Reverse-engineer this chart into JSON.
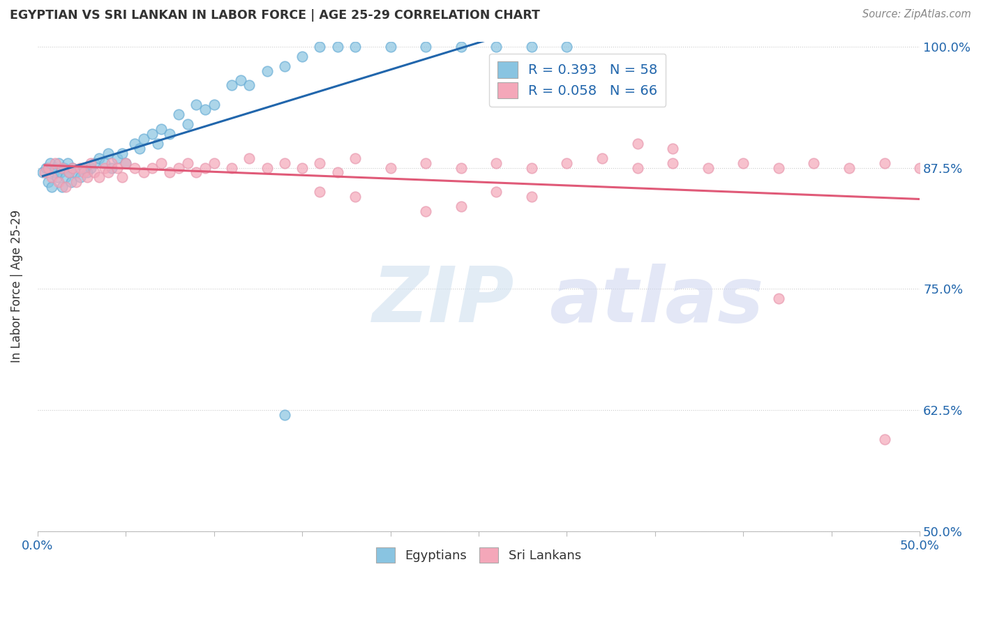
{
  "title": "EGYPTIAN VS SRI LANKAN IN LABOR FORCE | AGE 25-29 CORRELATION CHART",
  "source": "Source: ZipAtlas.com",
  "ylabel": "In Labor Force | Age 25-29",
  "xmin": 0.0,
  "xmax": 0.5,
  "ymin": 0.5,
  "ymax": 1.005,
  "yticks": [
    0.5,
    0.625,
    0.75,
    0.875,
    1.0
  ],
  "ytick_labels": [
    "50.0%",
    "62.5%",
    "75.0%",
    "87.5%",
    "100.0%"
  ],
  "R_egyptian": 0.393,
  "N_egyptian": 58,
  "R_srilankan": 0.058,
  "N_srilankan": 66,
  "egyptian_color": "#89c4e1",
  "srilankan_color": "#f4a7b9",
  "egyptian_line_color": "#2166ac",
  "srilankan_line_color": "#e05a78",
  "background_color": "#ffffff",
  "eg_x": [
    0.003,
    0.005,
    0.006,
    0.007,
    0.008,
    0.009,
    0.01,
    0.011,
    0.012,
    0.013,
    0.014,
    0.015,
    0.016,
    0.017,
    0.018,
    0.019,
    0.02,
    0.022,
    0.024,
    0.026,
    0.028,
    0.03,
    0.032,
    0.035,
    0.038,
    0.04,
    0.042,
    0.045,
    0.048,
    0.05,
    0.055,
    0.058,
    0.06,
    0.065,
    0.068,
    0.07,
    0.075,
    0.08,
    0.085,
    0.09,
    0.095,
    0.1,
    0.11,
    0.115,
    0.12,
    0.13,
    0.14,
    0.15,
    0.16,
    0.17,
    0.18,
    0.2,
    0.22,
    0.24,
    0.26,
    0.28,
    0.3,
    0.14
  ],
  "eg_y": [
    0.87,
    0.875,
    0.86,
    0.88,
    0.855,
    0.87,
    0.875,
    0.865,
    0.88,
    0.87,
    0.855,
    0.875,
    0.865,
    0.88,
    0.87,
    0.86,
    0.875,
    0.87,
    0.865,
    0.875,
    0.87,
    0.875,
    0.88,
    0.885,
    0.88,
    0.89,
    0.875,
    0.885,
    0.89,
    0.88,
    0.9,
    0.895,
    0.905,
    0.91,
    0.9,
    0.915,
    0.91,
    0.93,
    0.92,
    0.94,
    0.935,
    0.94,
    0.96,
    0.965,
    0.96,
    0.975,
    0.98,
    0.99,
    1.0,
    1.0,
    1.0,
    1.0,
    1.0,
    1.0,
    1.0,
    1.0,
    1.0,
    0.62
  ],
  "sl_x": [
    0.004,
    0.006,
    0.008,
    0.01,
    0.012,
    0.014,
    0.016,
    0.018,
    0.02,
    0.022,
    0.024,
    0.026,
    0.028,
    0.03,
    0.032,
    0.035,
    0.038,
    0.04,
    0.042,
    0.045,
    0.048,
    0.05,
    0.055,
    0.06,
    0.065,
    0.07,
    0.075,
    0.08,
    0.085,
    0.09,
    0.095,
    0.1,
    0.11,
    0.12,
    0.13,
    0.14,
    0.15,
    0.16,
    0.17,
    0.18,
    0.2,
    0.22,
    0.24,
    0.26,
    0.28,
    0.3,
    0.32,
    0.34,
    0.36,
    0.38,
    0.4,
    0.42,
    0.44,
    0.46,
    0.48,
    0.5,
    0.34,
    0.36,
    0.26,
    0.28,
    0.22,
    0.24,
    0.16,
    0.18,
    0.42,
    0.48
  ],
  "sl_y": [
    0.87,
    0.875,
    0.865,
    0.88,
    0.86,
    0.875,
    0.855,
    0.87,
    0.875,
    0.86,
    0.875,
    0.87,
    0.865,
    0.88,
    0.87,
    0.865,
    0.875,
    0.87,
    0.88,
    0.875,
    0.865,
    0.88,
    0.875,
    0.87,
    0.875,
    0.88,
    0.87,
    0.875,
    0.88,
    0.87,
    0.875,
    0.88,
    0.875,
    0.885,
    0.875,
    0.88,
    0.875,
    0.88,
    0.87,
    0.885,
    0.875,
    0.88,
    0.875,
    0.88,
    0.875,
    0.88,
    0.885,
    0.875,
    0.88,
    0.875,
    0.88,
    0.875,
    0.88,
    0.875,
    0.88,
    0.875,
    0.9,
    0.895,
    0.85,
    0.845,
    0.83,
    0.835,
    0.85,
    0.845,
    0.74,
    0.595
  ]
}
